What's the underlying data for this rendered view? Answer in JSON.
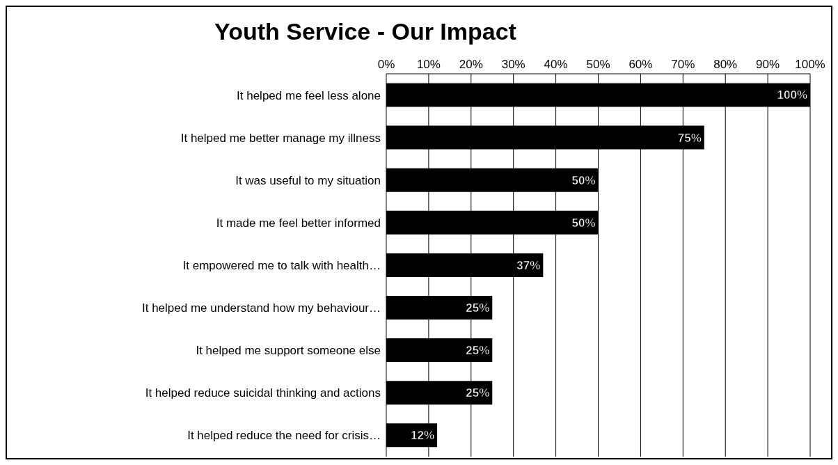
{
  "chart_data": {
    "type": "bar",
    "orientation": "horizontal",
    "title": "Youth Service - Our Impact",
    "categories": [
      "It helped me feel less alone",
      "It helped me better manage my illness",
      "It was useful to my situation",
      "It made me feel better informed",
      "It empowered me to talk with health…",
      "It helped me understand how my behaviour…",
      "It helped me support someone else",
      "It helped reduce suicidal thinking and actions",
      "It helped reduce the need for crisis…"
    ],
    "values": [
      100,
      75,
      50,
      50,
      37,
      25,
      25,
      25,
      12
    ],
    "value_labels": [
      "100%",
      "75%",
      "50%",
      "50%",
      "37%",
      "25%",
      "25%",
      "25%",
      "12%"
    ],
    "color": "#000000",
    "xlim": [
      0,
      100
    ],
    "xticks": [
      {
        "value": 0,
        "label": "0%"
      },
      {
        "value": 10,
        "label": "10%"
      },
      {
        "value": 20,
        "label": "20%"
      },
      {
        "value": 30,
        "label": "30%"
      },
      {
        "value": 40,
        "label": "40%"
      },
      {
        "value": 50,
        "label": "50%"
      },
      {
        "value": 60,
        "label": "60%"
      },
      {
        "value": 70,
        "label": "70%"
      },
      {
        "value": 80,
        "label": "80%"
      },
      {
        "value": 90,
        "label": "90%"
      },
      {
        "value": 100,
        "label": "100%"
      }
    ],
    "grid": "x",
    "legend": false
  }
}
